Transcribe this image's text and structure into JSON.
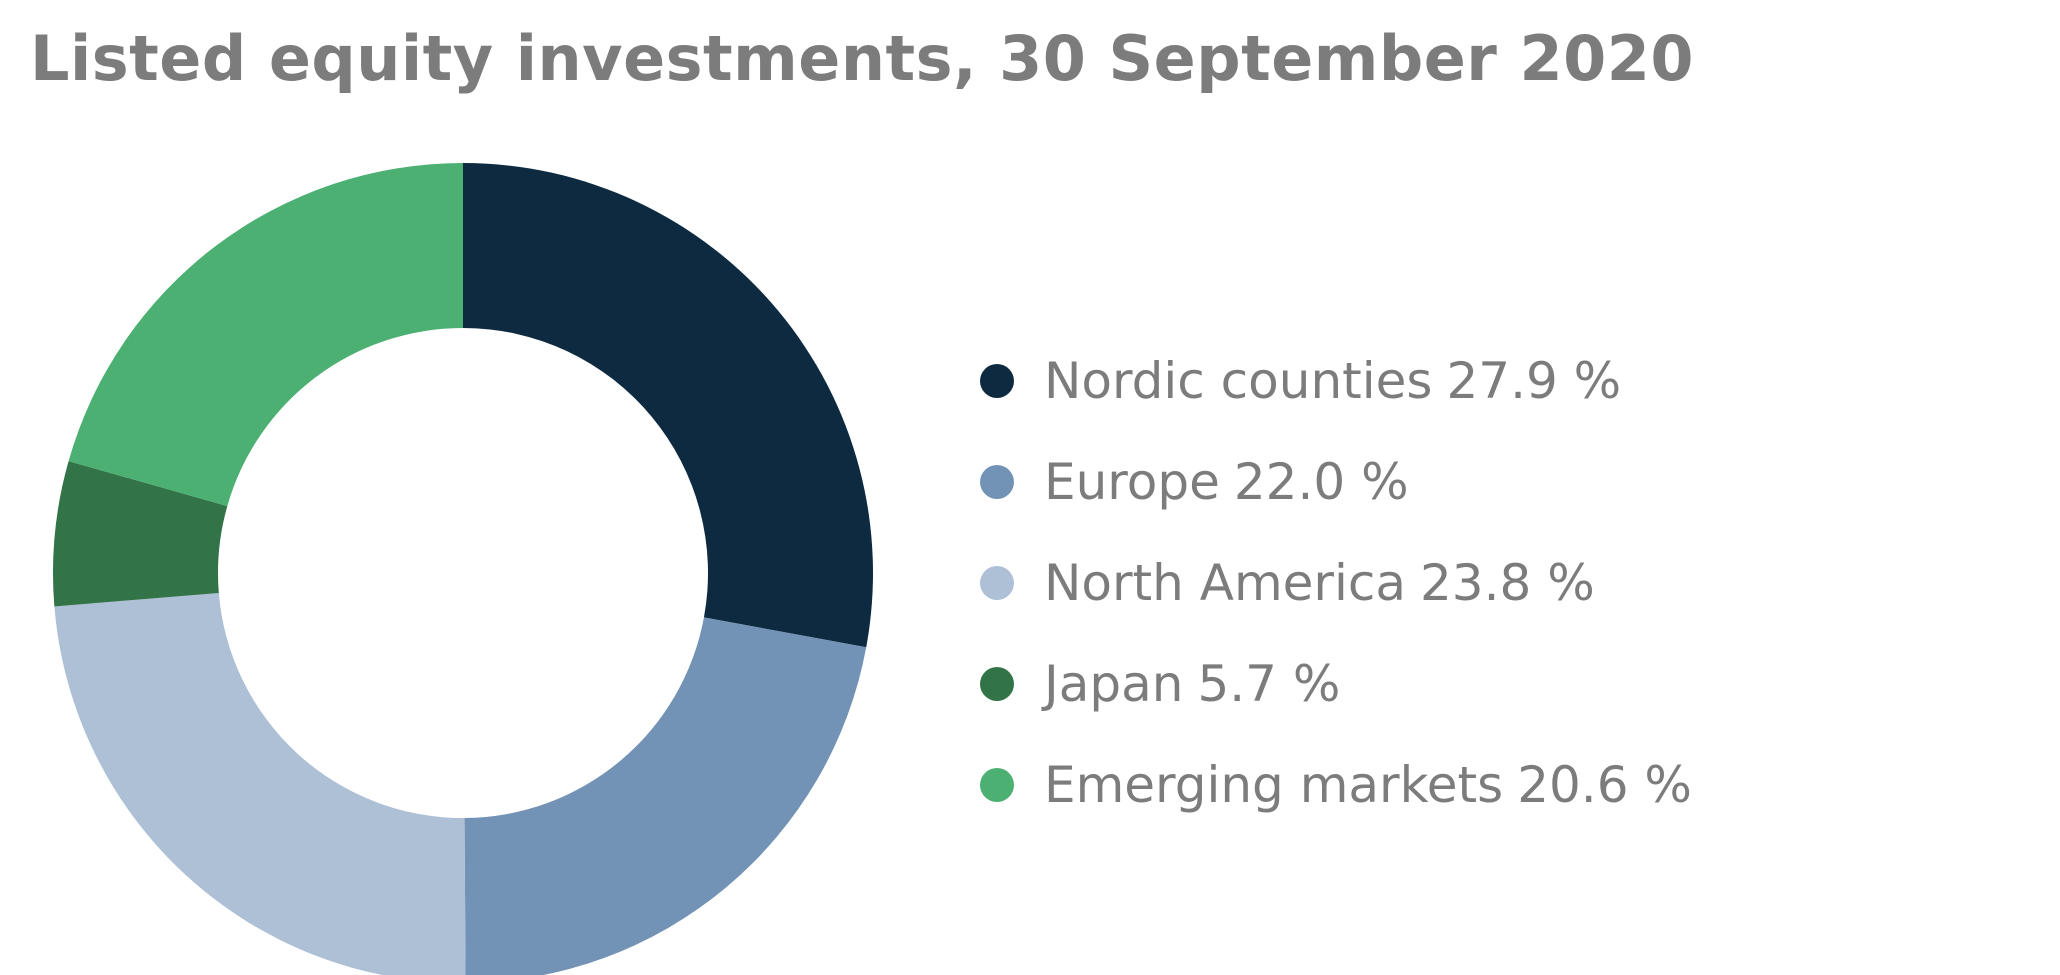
{
  "chart_data": {
    "type": "pie",
    "donut": true,
    "title": "Listed equity investments, 30 September 2020",
    "legend_position": "right",
    "series": [
      {
        "name": "Nordic counties",
        "value": 27.9,
        "label": "27.9 %",
        "color": "#0e2a40"
      },
      {
        "name": "Europe",
        "value": 22.0,
        "label": "22.0 %",
        "color": "#7292b6"
      },
      {
        "name": "North America",
        "value": 23.8,
        "label": "23.8 %",
        "color": "#adc0d6"
      },
      {
        "name": "Japan",
        "value": 5.7,
        "label": "5.7 %",
        "color": "#327447"
      },
      {
        "name": "Emerging markets",
        "value": 20.6,
        "label": "20.6 %",
        "color": "#4bb072"
      }
    ]
  }
}
